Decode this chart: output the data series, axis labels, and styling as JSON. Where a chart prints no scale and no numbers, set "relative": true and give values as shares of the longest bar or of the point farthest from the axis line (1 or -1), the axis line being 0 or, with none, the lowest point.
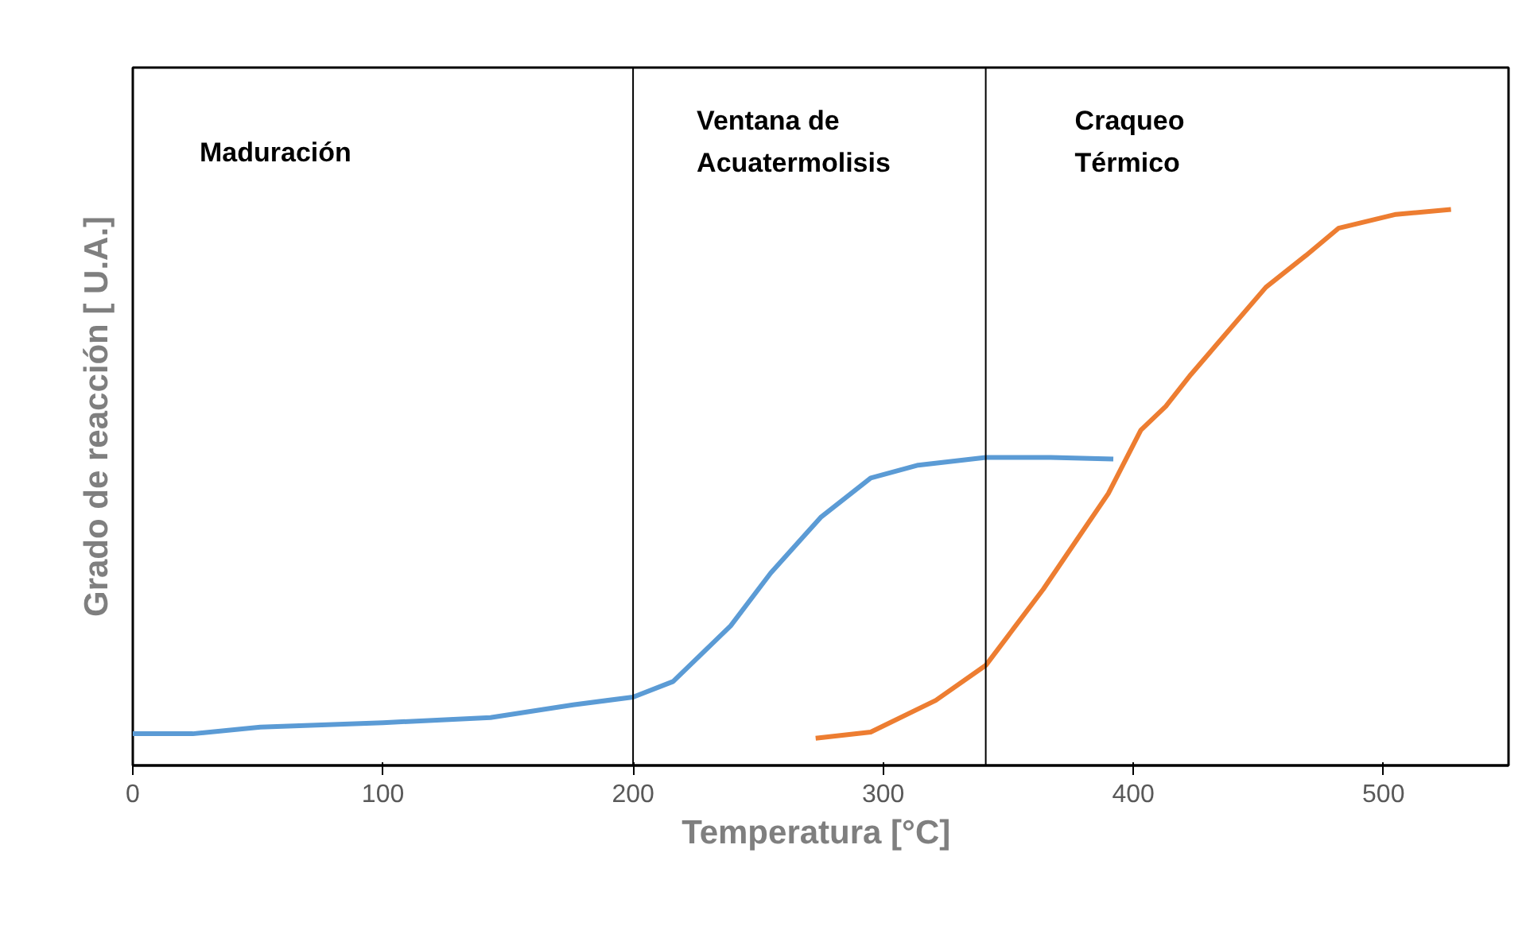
{
  "chart_data": {
    "type": "line",
    "relative": true,
    "xlabel": "Temperatura  [°C]",
    "ylabel": "Grado de reacción [ U.A.]",
    "xlim": [
      0,
      550
    ],
    "xticks": [
      0,
      100,
      200,
      300,
      400,
      500
    ],
    "grid": false,
    "marker": "none",
    "line_style": "solid",
    "series": [
      {
        "color": "#5b9bd5",
        "x": [
          0,
          24,
          51,
          100,
          143,
          176,
          200,
          216,
          239,
          255,
          275,
          295,
          314,
          341,
          367,
          392
        ],
        "values": [
          0.057,
          0.057,
          0.069,
          0.077,
          0.086,
          0.109,
          0.123,
          0.151,
          0.251,
          0.346,
          0.446,
          0.517,
          0.54,
          0.554,
          0.554,
          0.551
        ]
      },
      {
        "color": "#ed7d31",
        "x": [
          273,
          295,
          321,
          341,
          364,
          377,
          390,
          403,
          413,
          423,
          453,
          469,
          482,
          505,
          527
        ],
        "values": [
          0.049,
          0.06,
          0.117,
          0.18,
          0.317,
          0.403,
          0.489,
          0.603,
          0.646,
          0.703,
          0.86,
          0.917,
          0.966,
          0.991,
          1.0
        ]
      }
    ],
    "ref_lines": [
      {
        "axis": "x",
        "value": 200,
        "color": "#000000"
      },
      {
        "axis": "x",
        "value": 341,
        "color": "#000000"
      }
    ],
    "annotations": [
      "Maduración",
      "Ventana de\nAcuatermolisis",
      "Craqueo\nTérmico"
    ]
  }
}
